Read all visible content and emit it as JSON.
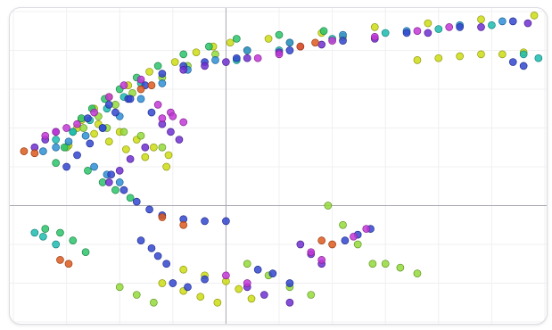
{
  "chart_data": {
    "type": "scatter",
    "title": "",
    "xlabel": "",
    "ylabel": "",
    "xlim": [
      -1.0,
      1.5
    ],
    "ylim": [
      -0.6,
      1.0
    ],
    "axes_through_origin": true,
    "grid": true,
    "tick_labels": "none",
    "legend": "none",
    "palette": [
      "#cddc14",
      "#93d93a",
      "#2bc36a",
      "#1cbcb0",
      "#2e8fd6",
      "#3346cf",
      "#6e2fd0",
      "#c237d6",
      "#dd5a1e"
    ],
    "series": [
      {
        "color_index": 0,
        "x": [
          -0.74,
          -0.68,
          -0.62,
          -0.55,
          -0.46,
          -0.36,
          -0.24,
          -0.14,
          -0.06,
          0.02,
          0.2,
          0.45,
          0.7,
          0.95,
          1.2,
          1.45,
          -0.7,
          -0.62,
          -0.55,
          -0.47,
          -0.38,
          -0.28,
          -0.6,
          -0.5,
          -0.42,
          -0.34,
          -0.27,
          0.9,
          1.0,
          1.1,
          1.2,
          1.3,
          1.4,
          -0.2,
          -0.1,
          0.0,
          0.06,
          0.12,
          -0.3,
          -0.2,
          -0.12,
          -0.04
        ],
        "y": [
          0.31,
          0.44,
          0.5,
          0.56,
          0.62,
          0.69,
          0.74,
          0.79,
          0.82,
          0.84,
          0.86,
          0.89,
          0.92,
          0.94,
          0.96,
          0.98,
          0.4,
          0.37,
          0.33,
          0.29,
          0.25,
          0.2,
          0.42,
          0.38,
          0.34,
          0.3,
          0.26,
          0.75,
          0.76,
          0.77,
          0.78,
          0.78,
          0.79,
          -0.33,
          -0.36,
          -0.39,
          -0.43,
          -0.48,
          -0.4,
          -0.44,
          -0.47,
          -0.5
        ]
      },
      {
        "color_index": 1,
        "x": [
          -0.75,
          -0.67,
          -0.6,
          -0.52,
          -0.44,
          -0.3,
          -0.18,
          -0.05,
          0.1,
          0.3,
          0.55,
          -0.56,
          -0.48,
          -0.4,
          -0.3,
          0.48,
          0.55,
          0.62,
          0.69,
          -0.5,
          -0.42,
          -0.34,
          0.1,
          0.2,
          0.3,
          0.4,
          0.75,
          0.82,
          0.9
        ],
        "y": [
          0.3,
          0.4,
          0.46,
          0.52,
          0.58,
          0.66,
          0.72,
          0.78,
          0.8,
          0.84,
          0.87,
          0.4,
          0.38,
          0.36,
          0.3,
          0.0,
          -0.1,
          -0.2,
          -0.3,
          -0.42,
          -0.46,
          -0.5,
          -0.3,
          -0.36,
          -0.42,
          -0.46,
          -0.3,
          -0.32,
          -0.35
        ]
      },
      {
        "color_index": 2,
        "x": [
          -0.8,
          -0.76,
          -0.72,
          -0.68,
          -0.63,
          -0.57,
          -0.5,
          -0.42,
          -0.32,
          -0.2,
          -0.08,
          0.05,
          0.25,
          0.46,
          -0.65,
          -0.58,
          -0.52,
          -0.45,
          -0.85,
          -0.78,
          -0.72,
          -0.66
        ],
        "y": [
          0.22,
          0.3,
          0.38,
          0.45,
          0.5,
          0.55,
          0.6,
          0.66,
          0.72,
          0.78,
          0.82,
          0.86,
          0.88,
          0.9,
          0.18,
          0.12,
          0.08,
          0.04,
          -0.12,
          -0.14,
          -0.18,
          -0.24
        ]
      },
      {
        "color_index": 3,
        "x": [
          -0.8,
          -0.72,
          -0.64,
          -0.56,
          -0.48,
          -0.4,
          0.05,
          0.25,
          0.5,
          0.75,
          1.0,
          1.25,
          1.4,
          1.47,
          -0.9,
          -0.86,
          -0.8
        ],
        "y": [
          0.34,
          0.38,
          0.44,
          0.5,
          0.56,
          0.63,
          0.75,
          0.8,
          0.86,
          0.89,
          0.91,
          0.93,
          0.78,
          0.76,
          -0.14,
          -0.16,
          -0.2
        ]
      },
      {
        "color_index": 4,
        "x": [
          -0.86,
          -0.8,
          -0.74,
          -0.66,
          -0.58,
          -0.5,
          -0.4,
          -0.3,
          -0.18,
          -0.05,
          0.1,
          0.3,
          0.55,
          0.85,
          1.1,
          1.3,
          -0.62,
          -0.56,
          -0.5
        ],
        "y": [
          0.28,
          0.3,
          0.33,
          0.36,
          0.4,
          0.46,
          0.55,
          0.63,
          0.7,
          0.75,
          0.8,
          0.84,
          0.88,
          0.9,
          0.93,
          0.95,
          0.2,
          0.16,
          0.12
        ]
      },
      {
        "color_index": 5,
        "x": [
          -0.75,
          -0.7,
          -0.64,
          -0.58,
          -0.52,
          -0.46,
          -0.38,
          -0.3,
          -0.2,
          -0.1,
          0.05,
          0.3,
          0.55,
          0.85,
          1.1,
          1.35,
          -0.54,
          -0.48,
          -0.42,
          -0.36,
          -0.3,
          -0.2,
          -0.1,
          0.0,
          -0.65,
          -0.55,
          -0.45,
          -0.35,
          0.56,
          0.62,
          0.68,
          -0.25,
          -0.18,
          -0.1,
          0.15,
          0.22,
          0.3,
          1.35,
          1.4,
          -0.4,
          -0.35,
          -0.32,
          -0.28
        ],
        "y": [
          0.2,
          0.26,
          0.32,
          0.4,
          0.48,
          0.55,
          0.62,
          0.68,
          0.72,
          0.74,
          0.76,
          0.8,
          0.85,
          0.89,
          0.92,
          0.95,
          0.16,
          0.08,
          0.02,
          -0.02,
          -0.05,
          -0.07,
          -0.08,
          -0.08,
          0.45,
          0.52,
          0.55,
          0.48,
          -0.18,
          -0.15,
          -0.12,
          -0.4,
          -0.42,
          -0.38,
          -0.33,
          -0.35,
          -0.4,
          0.74,
          0.72,
          -0.18,
          -0.22,
          -0.26,
          -0.3
        ]
      },
      {
        "color_index": 6,
        "x": [
          -0.2,
          -0.1,
          0.0,
          0.1,
          0.25,
          0.45,
          0.7,
          0.95,
          1.2,
          1.42,
          -0.55,
          -0.5,
          -0.45,
          -0.38,
          0.35,
          0.4,
          0.45,
          -0.3,
          -0.26,
          -0.22,
          -0.9,
          -0.85,
          -0.8,
          0.1,
          0.18,
          0.3
        ],
        "y": [
          0.7,
          0.72,
          0.74,
          0.76,
          0.79,
          0.83,
          0.86,
          0.89,
          0.92,
          0.94,
          0.12,
          0.18,
          0.24,
          0.3,
          -0.2,
          -0.25,
          -0.3,
          0.42,
          0.38,
          0.34,
          0.3,
          0.34,
          0.38,
          -0.42,
          -0.46,
          -0.5
        ]
      },
      {
        "color_index": 7,
        "x": [
          -0.62,
          -0.55,
          -0.48,
          -0.4,
          -0.32,
          -0.26,
          0.15,
          0.25,
          0.35,
          0.5,
          0.7,
          0.9,
          1.05,
          0.4,
          0.45,
          0.6,
          0.66,
          0.0,
          0.1,
          -0.3,
          -0.25,
          -0.2,
          -0.85,
          -0.8,
          -0.75,
          -0.7
        ],
        "y": [
          0.48,
          0.56,
          0.62,
          0.65,
          0.52,
          0.48,
          0.76,
          0.78,
          0.82,
          0.85,
          0.87,
          0.9,
          0.92,
          -0.24,
          -0.28,
          -0.16,
          -0.12,
          -0.36,
          -0.4,
          0.45,
          0.46,
          0.43,
          0.36,
          0.38,
          0.4,
          0.42
        ]
      },
      {
        "color_index": 8,
        "x": [
          -0.95,
          -0.9,
          -0.4,
          -0.35,
          0.35,
          0.42,
          -0.78,
          -0.74,
          0.45,
          0.5,
          -0.3,
          -0.2
        ],
        "y": [
          0.28,
          0.27,
          0.6,
          0.62,
          0.82,
          0.84,
          -0.28,
          -0.3,
          -0.18,
          -0.2,
          -0.06,
          -0.1
        ]
      }
    ]
  }
}
